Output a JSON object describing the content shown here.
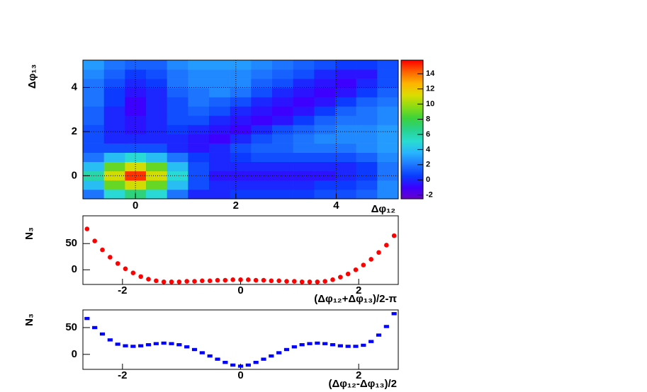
{
  "chart_data": [
    {
      "type": "heatmap",
      "x_label": "Δφ₁₂",
      "y_label": "Δφ₁₃",
      "xlim": [
        -1.047,
        5.236
      ],
      "ylim": [
        -1.047,
        5.236
      ],
      "xticks": [
        0,
        2,
        4
      ],
      "yticks": [
        0,
        2,
        4
      ],
      "grid": true,
      "zlim": [
        -2.5,
        15.8
      ],
      "zticks": [
        -2,
        0,
        2,
        4,
        6,
        8,
        10,
        12,
        14
      ],
      "palette": [
        "#6a00c8",
        "#3c00ff",
        "#0a3cff",
        "#1e78ff",
        "#28b4ff",
        "#28dcd2",
        "#28d28c",
        "#3cd23c",
        "#8cdc14",
        "#dcdc00",
        "#ffb400",
        "#ff6400",
        "#ff0000"
      ],
      "z": [
        [
          2,
          5,
          7,
          5,
          2,
          0,
          0,
          0.5,
          0.5,
          0.5,
          0.5,
          1,
          1,
          1.5,
          2.5
        ],
        [
          4,
          9,
          11,
          9,
          4,
          1,
          0,
          0,
          0,
          0,
          0,
          0.5,
          0.5,
          1,
          2.5
        ],
        [
          6,
          11,
          15,
          11,
          5,
          1,
          -0.5,
          -0.5,
          -0.5,
          -0.5,
          -0.5,
          -0.5,
          0,
          0.5,
          2
        ],
        [
          4,
          9,
          11,
          9,
          4,
          1,
          0,
          0,
          0,
          0,
          0,
          0,
          0,
          0.5,
          2
        ],
        [
          2,
          4,
          5,
          4,
          2,
          0.5,
          0,
          0.5,
          1,
          1,
          1,
          1,
          1,
          1.5,
          2.5
        ],
        [
          1,
          1,
          1,
          1,
          0,
          -0.5,
          0,
          1,
          1.5,
          1.5,
          2,
          2,
          2,
          2.5,
          3
        ],
        [
          1,
          0,
          0,
          0,
          0,
          -0.5,
          -1,
          0,
          1,
          1.5,
          2,
          2.5,
          2.5,
          2.5,
          3
        ],
        [
          1,
          0,
          -0.5,
          0,
          0.5,
          0,
          -0.5,
          -1,
          0,
          1,
          1.5,
          2,
          2.5,
          2.5,
          3
        ],
        [
          1.5,
          0,
          -0.5,
          0,
          1,
          1,
          0,
          -0.5,
          -1,
          -0.5,
          0.5,
          1.5,
          2,
          2,
          2.5
        ],
        [
          1.5,
          0,
          -1,
          0,
          1,
          1.5,
          1,
          0,
          -0.5,
          -1,
          -0.5,
          0.5,
          1.5,
          2,
          2.5
        ],
        [
          2,
          0.5,
          -1,
          0,
          1,
          2,
          1.5,
          1,
          0,
          -0.5,
          -1,
          -0.5,
          0.5,
          1.5,
          2
        ],
        [
          2,
          0.5,
          -0.5,
          0,
          1.5,
          2,
          2.5,
          2,
          1,
          0,
          -0.5,
          -1,
          -0.5,
          0.5,
          1.5
        ],
        [
          2,
          1,
          0,
          0.5,
          2,
          2.5,
          2.5,
          2.5,
          1.5,
          1,
          0,
          -0.5,
          -1,
          0,
          1
        ],
        [
          2.5,
          1.5,
          0.5,
          1,
          2,
          2.5,
          2.5,
          2.5,
          2,
          1.5,
          1,
          0,
          -0.5,
          -0.5,
          1
        ],
        [
          3,
          2,
          1.5,
          1.5,
          2.5,
          3,
          3,
          3,
          2.5,
          2,
          1.5,
          1,
          0.5,
          0.5,
          1
        ]
      ]
    },
    {
      "type": "scatter",
      "marker": "circle",
      "color": "#ff0000",
      "x_label": "(Δφ₁₂+Δφ₁₃)/2-π",
      "y_label": "N₃",
      "xlim": [
        -2.67,
        2.67
      ],
      "ylim": [
        -28,
        103
      ],
      "xticks": [
        -2,
        0,
        2
      ],
      "yticks": [
        0,
        50
      ],
      "grid": false,
      "x": [
        -2.6,
        -2.47,
        -2.34,
        -2.21,
        -2.08,
        -1.95,
        -1.82,
        -1.69,
        -1.56,
        -1.43,
        -1.3,
        -1.17,
        -1.04,
        -0.91,
        -0.78,
        -0.65,
        -0.52,
        -0.39,
        -0.26,
        -0.13,
        0,
        0.13,
        0.26,
        0.39,
        0.52,
        0.65,
        0.78,
        0.91,
        1.04,
        1.17,
        1.3,
        1.43,
        1.56,
        1.69,
        1.82,
        1.95,
        2.08,
        2.21,
        2.34,
        2.47,
        2.6
      ],
      "values": [
        78,
        55,
        38,
        24,
        12,
        2,
        -6,
        -13,
        -18,
        -21,
        -23,
        -23,
        -23,
        -22,
        -22,
        -21,
        -21,
        -20,
        -20,
        -19,
        -19,
        -19,
        -20,
        -20,
        -21,
        -21,
        -22,
        -22,
        -23,
        -23,
        -23,
        -22,
        -19,
        -14,
        -8,
        0,
        9,
        20,
        33,
        47,
        65
      ]
    },
    {
      "type": "scatter",
      "marker": "dash",
      "color": "#0000ff",
      "x_label": "(Δφ₁₂-Δφ₁₃)/2",
      "y_label": "N₃",
      "xlim": [
        -2.67,
        2.67
      ],
      "ylim": [
        -28,
        83
      ],
      "xticks": [
        -2,
        0,
        2
      ],
      "yticks": [
        0,
        50
      ],
      "grid": false,
      "x": [
        -2.6,
        -2.47,
        -2.34,
        -2.21,
        -2.08,
        -1.95,
        -1.82,
        -1.69,
        -1.56,
        -1.43,
        -1.3,
        -1.17,
        -1.04,
        -0.91,
        -0.78,
        -0.65,
        -0.52,
        -0.39,
        -0.26,
        -0.13,
        0,
        0.13,
        0.26,
        0.39,
        0.52,
        0.65,
        0.78,
        0.91,
        1.04,
        1.17,
        1.3,
        1.43,
        1.56,
        1.69,
        1.82,
        1.95,
        2.08,
        2.21,
        2.34,
        2.47,
        2.6
      ],
      "values": [
        67,
        50,
        38,
        27,
        19,
        16,
        15,
        16,
        18,
        20,
        21,
        20,
        18,
        14,
        9,
        3,
        -3,
        -9,
        -15,
        -20,
        -22,
        -20,
        -15,
        -9,
        -3,
        3,
        9,
        14,
        18,
        20,
        21,
        20,
        18,
        16,
        15,
        15,
        17,
        24,
        36,
        52,
        76
      ]
    }
  ]
}
